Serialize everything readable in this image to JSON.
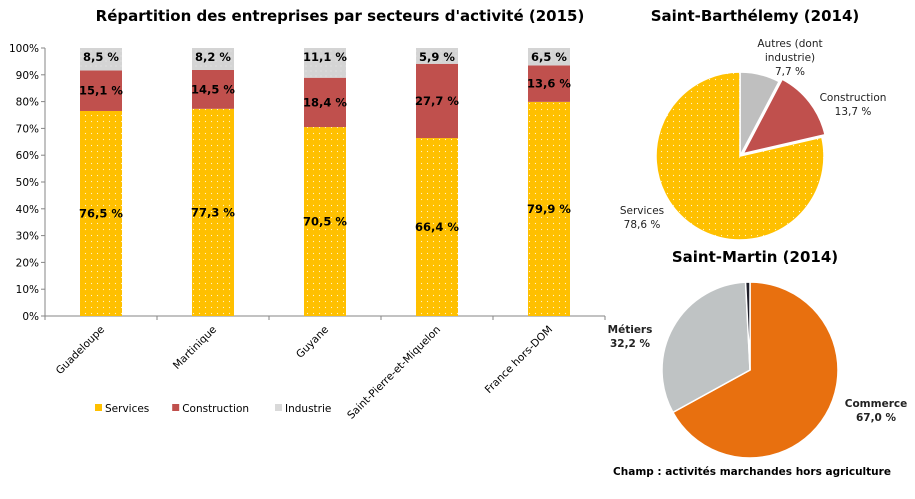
{
  "chart_data": [
    {
      "type": "bar",
      "stacked": true,
      "title": "Répartition des entreprises par secteurs d'activité (2015)",
      "categories": [
        "Guadeloupe",
        "Martinique",
        "Guyane",
        "Saint-Pierre-et-Miquelon",
        "France hors-DOM"
      ],
      "series": [
        {
          "name": "Services",
          "color": "#FFC000",
          "values": [
            76.5,
            77.3,
            70.5,
            66.4,
            79.9
          ],
          "labels": [
            "76,5 %",
            "77,3 %",
            "70,5 %",
            "66,4 %",
            "79,9 %"
          ]
        },
        {
          "name": "Construction",
          "color": "#C0504D",
          "values": [
            15.1,
            14.5,
            18.4,
            27.7,
            13.6
          ],
          "labels": [
            "15,1 %",
            "14,5 %",
            "18,4 %",
            "27,7 %",
            "13,6 %"
          ]
        },
        {
          "name": "Industrie",
          "color": "#D9D9D9",
          "values": [
            8.5,
            8.2,
            11.1,
            5.9,
            6.5
          ],
          "labels": [
            "8,5 %",
            "8,2 %",
            "11,1 %",
            "5,9 %",
            "6,5 %"
          ]
        }
      ],
      "ylim": [
        0,
        100
      ],
      "yticks": [
        "0%",
        "10%",
        "20%",
        "30%",
        "40%",
        "50%",
        "60%",
        "70%",
        "80%",
        "90%",
        "100%"
      ],
      "grid": false,
      "legend": "bottom"
    },
    {
      "type": "pie",
      "title": "Saint-Barthélemy (2014)",
      "slices": [
        {
          "name": [
            "Autres (dont",
            "industrie)"
          ],
          "value": 7.7,
          "label": "7,7 %",
          "color": "#BFBFBF"
        },
        {
          "name": [
            "Construction"
          ],
          "value": 13.7,
          "label": "13,7 %",
          "color": "#C0504D"
        },
        {
          "name": [
            "Services"
          ],
          "value": 78.6,
          "label": "78,6 %",
          "color": "#FFC000"
        }
      ]
    },
    {
      "type": "pie",
      "title": "Saint-Martin (2014)",
      "slices": [
        {
          "name": [
            "Commerce"
          ],
          "value": 67.0,
          "label": "67,0 %",
          "color": "#E8700F"
        },
        {
          "name": [
            "Métiers"
          ],
          "value": 32.2,
          "label": "32,2 %",
          "color": "#BFC3C4"
        },
        {
          "name": [],
          "value": 0.8,
          "label": "",
          "color": "#1F1F2A"
        }
      ]
    }
  ],
  "note": "Champ : activités marchandes hors agriculture"
}
